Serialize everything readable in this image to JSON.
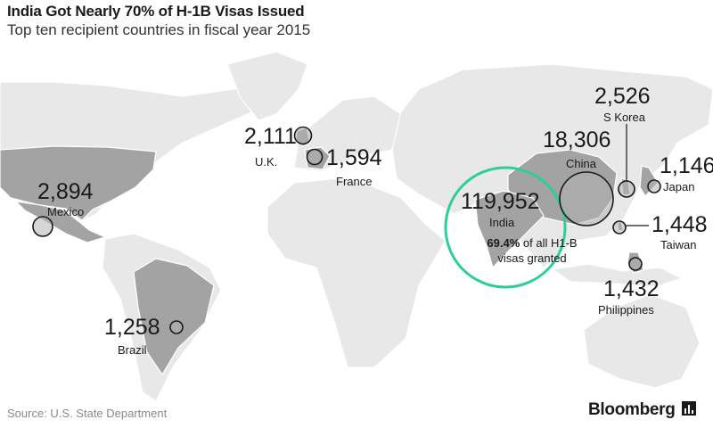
{
  "header": {
    "title": "India Got Nearly 70% of H-1B Visas Issued",
    "subtitle": "Top ten recipient countries in fiscal year 2015"
  },
  "countries": [
    {
      "name": "India",
      "value": "119,952",
      "visas": 119952
    },
    {
      "name": "China",
      "value": "18,306",
      "visas": 18306
    },
    {
      "name": "Mexico",
      "value": "2,894",
      "visas": 2894
    },
    {
      "name": "S Korea",
      "value": "2,526",
      "visas": 2526
    },
    {
      "name": "U.K.",
      "value": "2,111",
      "visas": 2111
    },
    {
      "name": "France",
      "value": "1,594",
      "visas": 1594
    },
    {
      "name": "Taiwan",
      "value": "1,448",
      "visas": 1448
    },
    {
      "name": "Philippines",
      "value": "1,432",
      "visas": 1432
    },
    {
      "name": "Brazil",
      "value": "1,258",
      "visas": 1258
    },
    {
      "name": "Japan",
      "value": "1,146",
      "visas": 1146
    }
  ],
  "india_note": {
    "share": "69.4%",
    "rest": "of all H1-B visas granted"
  },
  "footer": {
    "source": "Source: U.S. State Department",
    "brand": "Bloomberg"
  },
  "colors": {
    "highlight_land": "#a3a3a3",
    "land": "#e8e8e8",
    "ring": "#2ecf93"
  }
}
